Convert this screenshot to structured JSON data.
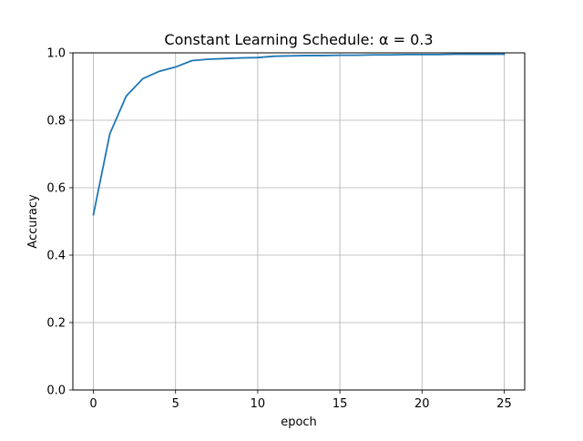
{
  "chart_data": {
    "type": "line",
    "title": "Constant Learning Schedule: α = 0.3",
    "xlabel": "epoch",
    "ylabel": "Accuracy",
    "xlim": [
      -1.25,
      26.25
    ],
    "ylim": [
      0.0,
      1.0
    ],
    "grid": true,
    "legend": "none",
    "x_ticks": [
      0,
      5,
      10,
      15,
      20,
      25
    ],
    "x_tick_labels": [
      "0",
      "5",
      "10",
      "15",
      "20",
      "25"
    ],
    "y_ticks": [
      0.0,
      0.2,
      0.4,
      0.6,
      0.8,
      1.0
    ],
    "y_tick_labels": [
      "0.0",
      "0.2",
      "0.4",
      "0.6",
      "0.8",
      "1.0"
    ],
    "series": [
      {
        "color": "#1f77b4",
        "x": [
          0,
          1,
          2,
          3,
          4,
          5,
          6,
          7,
          8,
          9,
          10,
          11,
          12,
          13,
          14,
          15,
          16,
          17,
          18,
          19,
          20,
          21,
          22,
          23,
          24,
          25
        ],
        "y": [
          0.52,
          0.76,
          0.872,
          0.923,
          0.945,
          0.958,
          0.977,
          0.981,
          0.983,
          0.985,
          0.986,
          0.99,
          0.991,
          0.992,
          0.992,
          0.993,
          0.993,
          0.994,
          0.994,
          0.995,
          0.995,
          0.995,
          0.996,
          0.996,
          0.996,
          0.996
        ]
      }
    ]
  },
  "colors": {
    "grid": "#b0b0b0",
    "axes": "#000000",
    "line": "#1f77b4"
  }
}
